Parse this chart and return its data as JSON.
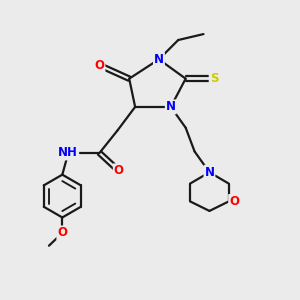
{
  "bg_color": "#ebebeb",
  "bond_color": "#1a1a1a",
  "bond_width": 1.6,
  "atom_colors": {
    "N": "#0000ff",
    "O": "#ff0000",
    "S": "#cccc00",
    "H": "#4a9090",
    "C": "#1a1a1a"
  },
  "font_size_atom": 8.5
}
